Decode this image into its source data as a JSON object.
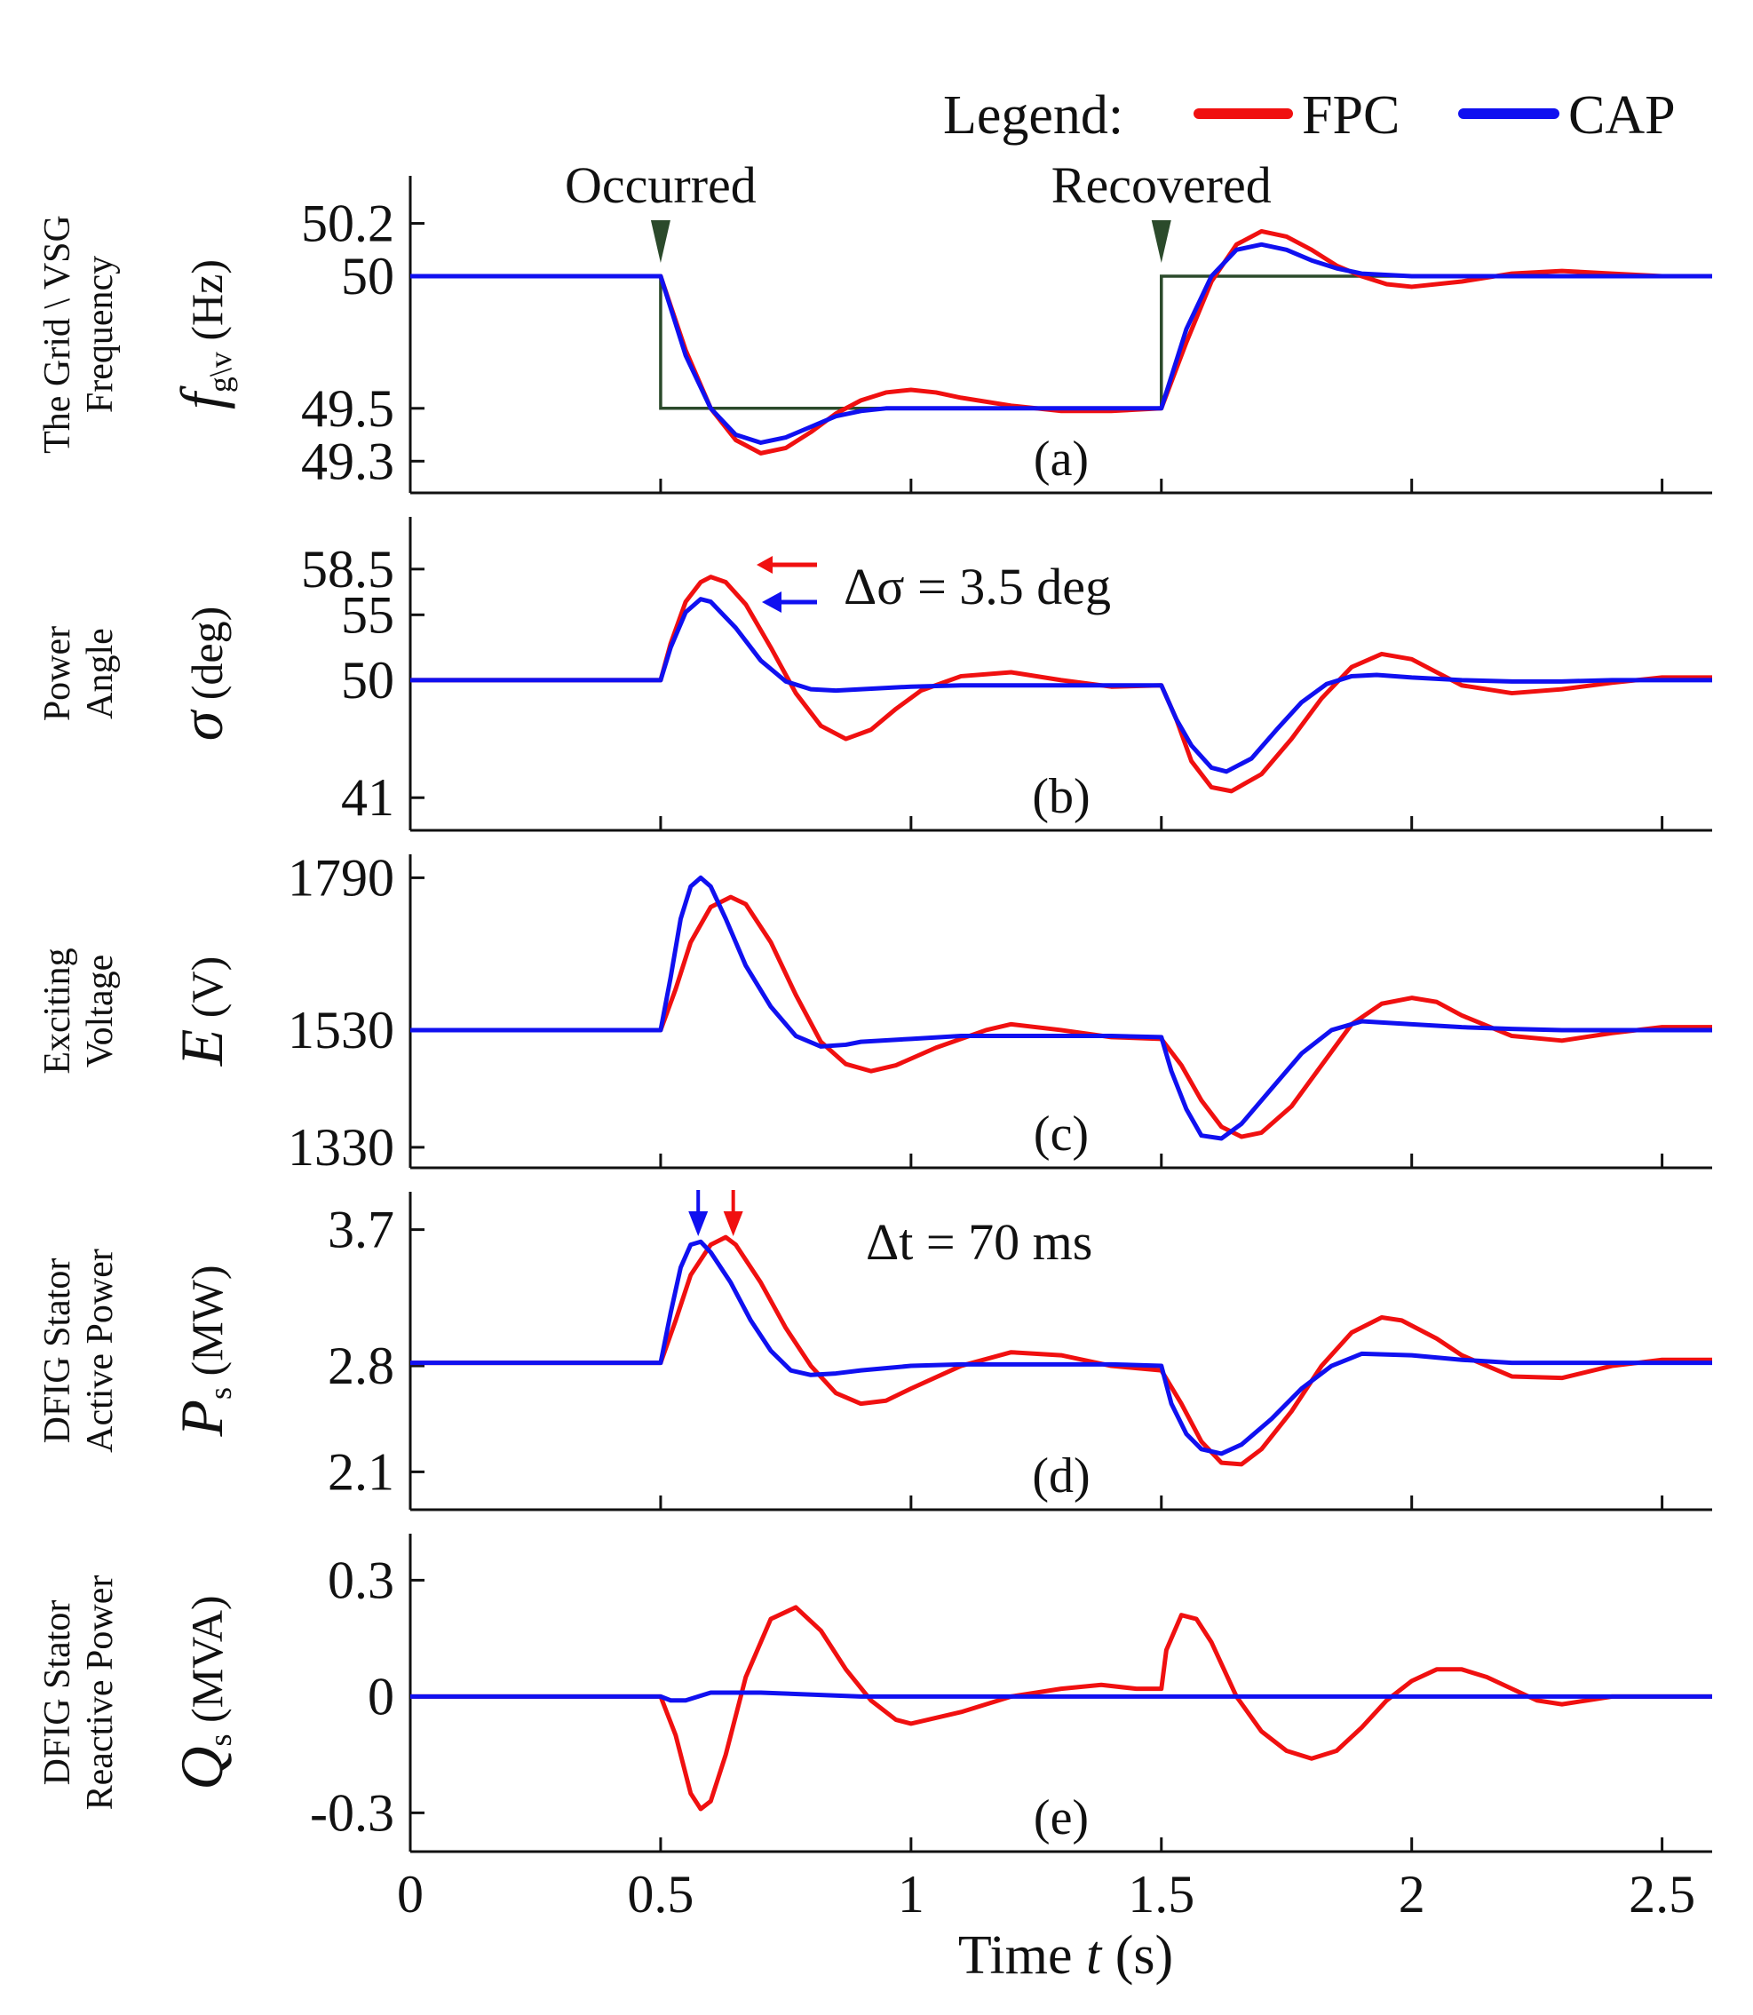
{
  "legend": {
    "title": "Legend:",
    "entries": [
      {
        "name": "FPC",
        "color": "#f01010"
      },
      {
        "name": "CAP",
        "color": "#1010f0"
      }
    ]
  },
  "grid_color": "#2b4a2b",
  "xaxis": {
    "label_prefix": "Time ",
    "label_symbol": "t",
    "label_unit": " (s)",
    "ticks": [
      0,
      0.5,
      1,
      1.5,
      2,
      2.5
    ],
    "tick_labels": [
      "0",
      "0.5",
      "1",
      "1.5",
      "2",
      "2.5"
    ],
    "range": [
      0,
      2.6
    ]
  },
  "panels": [
    {
      "label": "(a)",
      "ylabel_lines": [
        "The Grid \\ VSG",
        "Frequency"
      ],
      "ysym": "f",
      "ysub": "g\\v",
      "yunit": " (Hz)",
      "ylim": [
        49.18,
        50.38
      ],
      "yticks": [
        49.3,
        49.5,
        50,
        50.2
      ],
      "ytick_labels": [
        "49.3",
        "49.5",
        "50",
        "50.2"
      ],
      "annotations": [
        "Occurred",
        "Recovered"
      ]
    },
    {
      "label": "(b)",
      "ylabel_lines": [
        "Power",
        "Angle"
      ],
      "ysym": "σ",
      "ysub": "",
      "yunit": " (deg)",
      "ylim": [
        38.5,
        62.5
      ],
      "yticks": [
        41,
        50,
        55,
        58.5
      ],
      "ytick_labels": [
        "41",
        "50",
        "55",
        "58.5"
      ],
      "annotations": [
        "Δσ = 3.5 deg"
      ]
    },
    {
      "label": "(c)",
      "ylabel_lines": [
        "Exciting",
        "Voltage"
      ],
      "ysym": "E",
      "ysub": "",
      "yunit": " (V)",
      "ylim": [
        1295,
        1830
      ],
      "yticks": [
        1330,
        1530,
        1790
      ],
      "ytick_labels": [
        "1330",
        "1530",
        "1790"
      ],
      "annotations": []
    },
    {
      "label": "(d)",
      "ylabel_lines": [
        "DFIG Stator",
        "Active Power"
      ],
      "ysym": "P",
      "ysub": "s",
      "yunit": " (MW)",
      "ylim": [
        1.85,
        3.95
      ],
      "yticks": [
        2.1,
        2.8,
        3.7
      ],
      "ytick_labels": [
        "2.1",
        "2.8",
        "3.7"
      ],
      "annotations": [
        "Δt = 70 ms"
      ]
    },
    {
      "label": "(e)",
      "ylabel_lines": [
        "DFIG Stator",
        "Reactive Power"
      ],
      "ysym": "Q",
      "ysub": "s",
      "yunit": " (MVA)",
      "ylim": [
        -0.4,
        0.42
      ],
      "yticks": [
        -0.3,
        0,
        0.3
      ],
      "ytick_labels": [
        "-0.3",
        "0",
        "0.3"
      ],
      "annotations": []
    }
  ],
  "chart_data": {
    "type": "line",
    "x_range": [
      0,
      2.6
    ],
    "xlabel": "Time t (s)",
    "series_names": [
      "FPC",
      "CAP"
    ],
    "panels": [
      {
        "id": "a",
        "ylabel": "The Grid \\ VSG Frequency f g\\v (Hz)",
        "grid": {
          "x": [
            0,
            0.5,
            0.5,
            1.5,
            1.5,
            2.6
          ],
          "y": [
            50,
            50,
            49.5,
            49.5,
            50,
            50
          ]
        },
        "series": [
          {
            "name": "FPC",
            "x": [
              0,
              0.5,
              0.55,
              0.6,
              0.65,
              0.7,
              0.75,
              0.8,
              0.85,
              0.9,
              0.95,
              1.0,
              1.05,
              1.1,
              1.2,
              1.3,
              1.4,
              1.5,
              1.55,
              1.6,
              1.65,
              1.7,
              1.75,
              1.8,
              1.85,
              1.9,
              1.95,
              2.0,
              2.1,
              2.2,
              2.3,
              2.4,
              2.5,
              2.6
            ],
            "y": [
              50,
              50,
              49.72,
              49.5,
              49.38,
              49.33,
              49.35,
              49.41,
              49.48,
              49.53,
              49.56,
              49.57,
              49.56,
              49.54,
              49.51,
              49.49,
              49.49,
              49.5,
              49.75,
              49.98,
              50.12,
              50.17,
              50.15,
              50.1,
              50.04,
              50.0,
              49.97,
              49.96,
              49.98,
              50.01,
              50.02,
              50.01,
              50.0,
              50.0
            ]
          },
          {
            "name": "CAP",
            "x": [
              0,
              0.5,
              0.55,
              0.6,
              0.65,
              0.7,
              0.75,
              0.8,
              0.85,
              0.9,
              0.95,
              1.0,
              1.1,
              1.2,
              1.3,
              1.4,
              1.5,
              1.55,
              1.6,
              1.65,
              1.7,
              1.75,
              1.8,
              1.85,
              1.9,
              2.0,
              2.1,
              2.2,
              2.3,
              2.6
            ],
            "y": [
              50,
              50,
              49.7,
              49.5,
              49.4,
              49.37,
              49.39,
              49.43,
              49.47,
              49.49,
              49.5,
              49.5,
              49.5,
              49.5,
              49.5,
              49.5,
              49.5,
              49.8,
              50.0,
              50.1,
              50.12,
              50.1,
              50.06,
              50.03,
              50.01,
              50.0,
              50.0,
              50.0,
              50.0,
              50.0
            ]
          }
        ]
      },
      {
        "id": "b",
        "ylabel": "Power Angle σ (deg)",
        "series": [
          {
            "name": "FPC",
            "x": [
              0,
              0.5,
              0.52,
              0.55,
              0.58,
              0.6,
              0.63,
              0.67,
              0.72,
              0.77,
              0.82,
              0.87,
              0.92,
              0.97,
              1.02,
              1.1,
              1.2,
              1.3,
              1.4,
              1.5,
              1.53,
              1.56,
              1.6,
              1.64,
              1.7,
              1.76,
              1.82,
              1.88,
              1.94,
              2.0,
              2.05,
              2.1,
              2.2,
              2.3,
              2.4,
              2.5,
              2.6
            ],
            "y": [
              50,
              50,
              52.8,
              56.0,
              57.5,
              57.9,
              57.5,
              55.8,
              52.5,
              49.0,
              46.5,
              45.5,
              46.2,
              47.8,
              49.2,
              50.3,
              50.6,
              50.0,
              49.5,
              49.6,
              47.0,
              43.8,
              41.8,
              41.5,
              42.8,
              45.5,
              48.6,
              51.0,
              52.0,
              51.6,
              50.6,
              49.6,
              49.0,
              49.3,
              49.8,
              50.2,
              50.2
            ]
          },
          {
            "name": "CAP",
            "x": [
              0,
              0.5,
              0.52,
              0.55,
              0.58,
              0.6,
              0.65,
              0.7,
              0.75,
              0.8,
              0.85,
              0.9,
              1.0,
              1.1,
              1.2,
              1.3,
              1.4,
              1.5,
              1.53,
              1.56,
              1.6,
              1.63,
              1.68,
              1.73,
              1.78,
              1.83,
              1.88,
              1.93,
              2.0,
              2.1,
              2.2,
              2.3,
              2.4,
              2.6
            ],
            "y": [
              50,
              50,
              52.5,
              55.2,
              56.2,
              56.0,
              54.0,
              51.5,
              49.9,
              49.3,
              49.2,
              49.3,
              49.5,
              49.6,
              49.6,
              49.6,
              49.6,
              49.6,
              47.0,
              45.0,
              43.3,
              43.0,
              44.0,
              46.2,
              48.3,
              49.7,
              50.3,
              50.4,
              50.2,
              50.0,
              49.9,
              49.9,
              50.0,
              50.0
            ]
          }
        ]
      },
      {
        "id": "c",
        "ylabel": "Exciting Voltage E (V)",
        "series": [
          {
            "name": "FPC",
            "x": [
              0,
              0.5,
              0.53,
              0.56,
              0.6,
              0.64,
              0.67,
              0.72,
              0.77,
              0.82,
              0.87,
              0.92,
              0.97,
              1.05,
              1.15,
              1.2,
              1.3,
              1.4,
              1.5,
              1.54,
              1.58,
              1.62,
              1.66,
              1.7,
              1.76,
              1.82,
              1.88,
              1.94,
              2.0,
              2.05,
              2.1,
              2.2,
              2.3,
              2.4,
              2.5,
              2.6
            ],
            "y": [
              1530,
              1530,
              1600,
              1680,
              1740,
              1757,
              1745,
              1680,
              1590,
              1510,
              1472,
              1460,
              1470,
              1500,
              1530,
              1540,
              1530,
              1518,
              1515,
              1470,
              1410,
              1365,
              1348,
              1355,
              1400,
              1470,
              1540,
              1575,
              1585,
              1578,
              1555,
              1520,
              1512,
              1525,
              1535,
              1535
            ]
          },
          {
            "name": "CAP",
            "x": [
              0,
              0.5,
              0.52,
              0.54,
              0.56,
              0.58,
              0.6,
              0.63,
              0.67,
              0.72,
              0.77,
              0.82,
              0.87,
              0.9,
              1.0,
              1.1,
              1.2,
              1.3,
              1.4,
              1.5,
              1.52,
              1.55,
              1.58,
              1.62,
              1.66,
              1.72,
              1.78,
              1.84,
              1.9,
              2.0,
              2.1,
              2.2,
              2.3,
              2.4,
              2.6
            ],
            "y": [
              1530,
              1530,
              1620,
              1720,
              1775,
              1790,
              1775,
              1720,
              1640,
              1570,
              1520,
              1502,
              1505,
              1510,
              1515,
              1520,
              1520,
              1520,
              1520,
              1518,
              1460,
              1395,
              1350,
              1345,
              1370,
              1430,
              1490,
              1530,
              1545,
              1540,
              1535,
              1532,
              1530,
              1530,
              1530
            ]
          }
        ]
      },
      {
        "id": "d",
        "ylabel": "DFIG Stator Active Power Ps (MW)",
        "series": [
          {
            "name": "FPC",
            "x": [
              0,
              0.5,
              0.53,
              0.56,
              0.6,
              0.63,
              0.65,
              0.7,
              0.75,
              0.8,
              0.85,
              0.9,
              0.95,
              1.0,
              1.1,
              1.2,
              1.3,
              1.4,
              1.5,
              1.54,
              1.58,
              1.62,
              1.66,
              1.7,
              1.76,
              1.82,
              1.88,
              1.94,
              1.98,
              2.05,
              2.1,
              2.2,
              2.3,
              2.4,
              2.5,
              2.6
            ],
            "y": [
              2.82,
              2.82,
              3.1,
              3.4,
              3.6,
              3.65,
              3.6,
              3.35,
              3.05,
              2.8,
              2.62,
              2.55,
              2.57,
              2.65,
              2.8,
              2.89,
              2.87,
              2.8,
              2.77,
              2.55,
              2.3,
              2.16,
              2.15,
              2.25,
              2.5,
              2.8,
              3.02,
              3.12,
              3.1,
              2.98,
              2.87,
              2.73,
              2.72,
              2.8,
              2.84,
              2.84
            ]
          },
          {
            "name": "CAP",
            "x": [
              0,
              0.5,
              0.52,
              0.54,
              0.56,
              0.58,
              0.6,
              0.64,
              0.68,
              0.72,
              0.76,
              0.8,
              0.85,
              0.9,
              1.0,
              1.1,
              1.2,
              1.3,
              1.4,
              1.5,
              1.52,
              1.55,
              1.58,
              1.62,
              1.66,
              1.72,
              1.78,
              1.84,
              1.9,
              2.0,
              2.1,
              2.2,
              2.3,
              2.6
            ],
            "y": [
              2.82,
              2.82,
              3.15,
              3.45,
              3.6,
              3.62,
              3.55,
              3.35,
              3.1,
              2.9,
              2.77,
              2.74,
              2.75,
              2.77,
              2.8,
              2.81,
              2.81,
              2.81,
              2.81,
              2.8,
              2.55,
              2.35,
              2.25,
              2.22,
              2.28,
              2.45,
              2.65,
              2.8,
              2.88,
              2.87,
              2.84,
              2.82,
              2.82,
              2.82
            ]
          }
        ]
      },
      {
        "id": "e",
        "ylabel": "DFIG Stator Reactive Power Qs (MVA)",
        "series": [
          {
            "name": "FPC",
            "x": [
              0,
              0.5,
              0.53,
              0.56,
              0.58,
              0.6,
              0.63,
              0.67,
              0.72,
              0.77,
              0.82,
              0.87,
              0.92,
              0.97,
              1.0,
              1.1,
              1.2,
              1.3,
              1.38,
              1.45,
              1.5,
              1.51,
              1.54,
              1.57,
              1.6,
              1.65,
              1.7,
              1.75,
              1.8,
              1.85,
              1.9,
              1.95,
              2.0,
              2.05,
              2.1,
              2.15,
              2.2,
              2.25,
              2.3,
              2.35,
              2.4,
              2.5,
              2.6
            ],
            "y": [
              0,
              0,
              -0.1,
              -0.25,
              -0.29,
              -0.27,
              -0.15,
              0.05,
              0.2,
              0.23,
              0.17,
              0.07,
              -0.01,
              -0.06,
              -0.07,
              -0.04,
              0.0,
              0.02,
              0.03,
              0.02,
              0.02,
              0.12,
              0.21,
              0.2,
              0.14,
              0.0,
              -0.09,
              -0.14,
              -0.16,
              -0.14,
              -0.08,
              -0.01,
              0.04,
              0.07,
              0.07,
              0.05,
              0.02,
              -0.01,
              -0.02,
              -0.01,
              0.0,
              0.0,
              0.0
            ]
          },
          {
            "name": "CAP",
            "x": [
              0,
              0.5,
              0.52,
              0.55,
              0.6,
              0.7,
              0.9,
              1.2,
              1.5,
              1.55,
              1.6,
              1.8,
              2.1,
              2.6
            ],
            "y": [
              0,
              0,
              -0.01,
              -0.01,
              0.01,
              0.01,
              0.0,
              0.0,
              0.0,
              0.0,
              0.0,
              0.0,
              0.0,
              0.0
            ]
          }
        ]
      }
    ]
  }
}
